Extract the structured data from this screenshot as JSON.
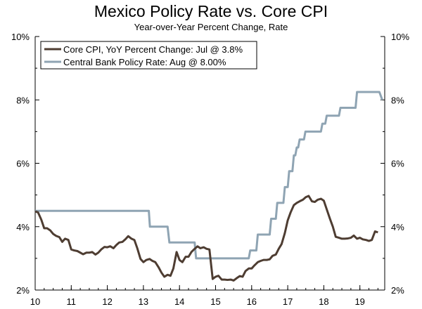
{
  "chart_data": {
    "type": "line",
    "title": "Mexico Policy Rate vs. Core CPI",
    "subtitle": "Year-over-Year Percent Change, Rate",
    "xlim": [
      2010,
      2019.7
    ],
    "ylim": [
      2,
      10
    ],
    "x_tick_values": [
      2010,
      2011,
      2012,
      2013,
      2014,
      2015,
      2016,
      2017,
      2018,
      2019
    ],
    "x_tick_labels": [
      "10",
      "11",
      "12",
      "13",
      "14",
      "15",
      "16",
      "17",
      "18",
      "19"
    ],
    "y_tick_values": [
      2,
      4,
      6,
      8,
      10
    ],
    "y_tick_labels": [
      "2%",
      "4%",
      "6%",
      "8%",
      "10%"
    ],
    "grid": false,
    "legend_placement": "top-left",
    "series": [
      {
        "name": "Core CPI, YoY Percent Change: Jul @ 3.8%",
        "color": "#4e3d32",
        "x": [
          2010.0,
          2010.08,
          2010.17,
          2010.25,
          2010.33,
          2010.42,
          2010.5,
          2010.58,
          2010.67,
          2010.75,
          2010.83,
          2010.92,
          2011.0,
          2011.08,
          2011.17,
          2011.25,
          2011.33,
          2011.42,
          2011.5,
          2011.58,
          2011.67,
          2011.75,
          2011.83,
          2011.92,
          2012.0,
          2012.08,
          2012.17,
          2012.25,
          2012.33,
          2012.42,
          2012.5,
          2012.58,
          2012.67,
          2012.75,
          2012.83,
          2012.92,
          2013.0,
          2013.08,
          2013.17,
          2013.25,
          2013.33,
          2013.42,
          2013.5,
          2013.58,
          2013.67,
          2013.75,
          2013.83,
          2013.92,
          2014.0,
          2014.08,
          2014.17,
          2014.25,
          2014.33,
          2014.42,
          2014.5,
          2014.58,
          2014.67,
          2014.75,
          2014.83,
          2014.92,
          2015.0,
          2015.08,
          2015.17,
          2015.25,
          2015.33,
          2015.42,
          2015.5,
          2015.58,
          2015.67,
          2015.75,
          2015.83,
          2015.92,
          2016.0,
          2016.08,
          2016.17,
          2016.25,
          2016.33,
          2016.42,
          2016.5,
          2016.58,
          2016.67,
          2016.75,
          2016.83,
          2016.92,
          2017.0,
          2017.08,
          2017.17,
          2017.25,
          2017.33,
          2017.42,
          2017.5,
          2017.58,
          2017.67,
          2017.75,
          2017.83,
          2017.92,
          2018.0,
          2018.08,
          2018.17,
          2018.25,
          2018.33,
          2018.42,
          2018.5,
          2018.58,
          2018.67,
          2018.75,
          2018.83,
          2018.92,
          2019.0,
          2019.08,
          2019.17,
          2019.25,
          2019.33,
          2019.42,
          2019.5
        ],
        "y": [
          4.48,
          4.45,
          4.22,
          3.95,
          3.95,
          3.88,
          3.77,
          3.71,
          3.67,
          3.52,
          3.62,
          3.58,
          3.28,
          3.25,
          3.23,
          3.18,
          3.13,
          3.18,
          3.18,
          3.2,
          3.12,
          3.18,
          3.28,
          3.36,
          3.35,
          3.38,
          3.32,
          3.42,
          3.5,
          3.52,
          3.6,
          3.7,
          3.62,
          3.58,
          3.32,
          2.98,
          2.88,
          2.95,
          2.98,
          2.92,
          2.88,
          2.72,
          2.55,
          2.42,
          2.48,
          2.45,
          2.68,
          3.2,
          2.95,
          2.88,
          3.05,
          3.05,
          3.2,
          3.3,
          3.38,
          3.32,
          3.35,
          3.3,
          3.28,
          2.35,
          2.42,
          2.45,
          2.33,
          2.33,
          2.32,
          2.33,
          2.3,
          2.37,
          2.44,
          2.42,
          2.6,
          2.68,
          2.68,
          2.78,
          2.88,
          2.92,
          2.95,
          2.95,
          2.97,
          3.08,
          3.12,
          3.3,
          3.45,
          3.8,
          4.2,
          4.45,
          4.68,
          4.75,
          4.8,
          4.85,
          4.93,
          4.97,
          4.8,
          4.78,
          4.85,
          4.88,
          4.82,
          4.55,
          4.25,
          4.0,
          3.68,
          3.65,
          3.62,
          3.62,
          3.63,
          3.65,
          3.72,
          3.62,
          3.65,
          3.6,
          3.58,
          3.55,
          3.58,
          3.85,
          3.82
        ]
      },
      {
        "name": "Central Bank Policy Rate: Aug @ 8.00%",
        "color": "#8fa4b3",
        "x": [
          2010.0,
          2013.15,
          2013.18,
          2013.67,
          2013.72,
          2014.42,
          2014.46,
          2015.92,
          2015.96,
          2016.13,
          2016.17,
          2016.5,
          2016.54,
          2016.67,
          2016.71,
          2016.88,
          2016.92,
          2017.0,
          2017.04,
          2017.13,
          2017.17,
          2017.21,
          2017.25,
          2017.29,
          2017.33,
          2017.45,
          2017.49,
          2017.92,
          2017.96,
          2018.04,
          2018.08,
          2018.42,
          2018.46,
          2018.88,
          2018.92,
          2019.5,
          2019.54,
          2019.62
        ],
        "y": [
          4.5,
          4.5,
          4.0,
          4.0,
          3.5,
          3.5,
          3.0,
          3.0,
          3.25,
          3.25,
          3.75,
          3.75,
          4.25,
          4.25,
          4.75,
          4.75,
          5.25,
          5.25,
          5.75,
          5.75,
          6.25,
          6.25,
          6.5,
          6.5,
          6.75,
          6.75,
          7.0,
          7.0,
          7.25,
          7.25,
          7.5,
          7.5,
          7.75,
          7.75,
          8.25,
          8.25,
          8.25,
          8.0
        ]
      }
    ]
  }
}
